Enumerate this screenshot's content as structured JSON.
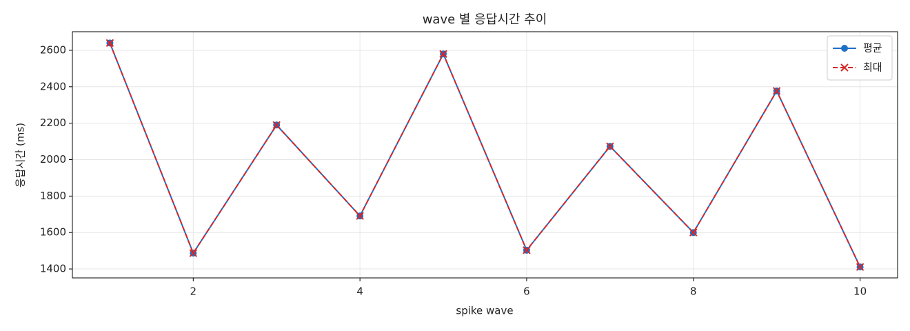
{
  "chart_data": {
    "type": "line",
    "title": "wave 별 응답시간 추이",
    "xlabel": "spike wave",
    "ylabel": "응답시간 (ms)",
    "x": [
      1,
      2,
      3,
      4,
      5,
      6,
      7,
      8,
      9,
      10
    ],
    "series": [
      {
        "name": "평균",
        "color": "#1f6fc5",
        "marker": "o",
        "linestyle": "solid",
        "values": [
          2640,
          1487,
          2190,
          1691,
          2580,
          1503,
          2073,
          1600,
          2377,
          1411
        ]
      },
      {
        "name": "최대",
        "color": "#d62728",
        "marker": "x",
        "linestyle": "dashed",
        "values": [
          2640,
          1487,
          2190,
          1691,
          2580,
          1503,
          2073,
          1600,
          2377,
          1411
        ]
      }
    ],
    "xlim": [
      0.55,
      10.45
    ],
    "ylim": [
      1351,
      2702
    ],
    "xticks": [
      2,
      4,
      6,
      8,
      10
    ],
    "yticks": [
      1400,
      1600,
      1800,
      2000,
      2200,
      2400,
      2600
    ],
    "grid": true,
    "legend": "upper right"
  }
}
